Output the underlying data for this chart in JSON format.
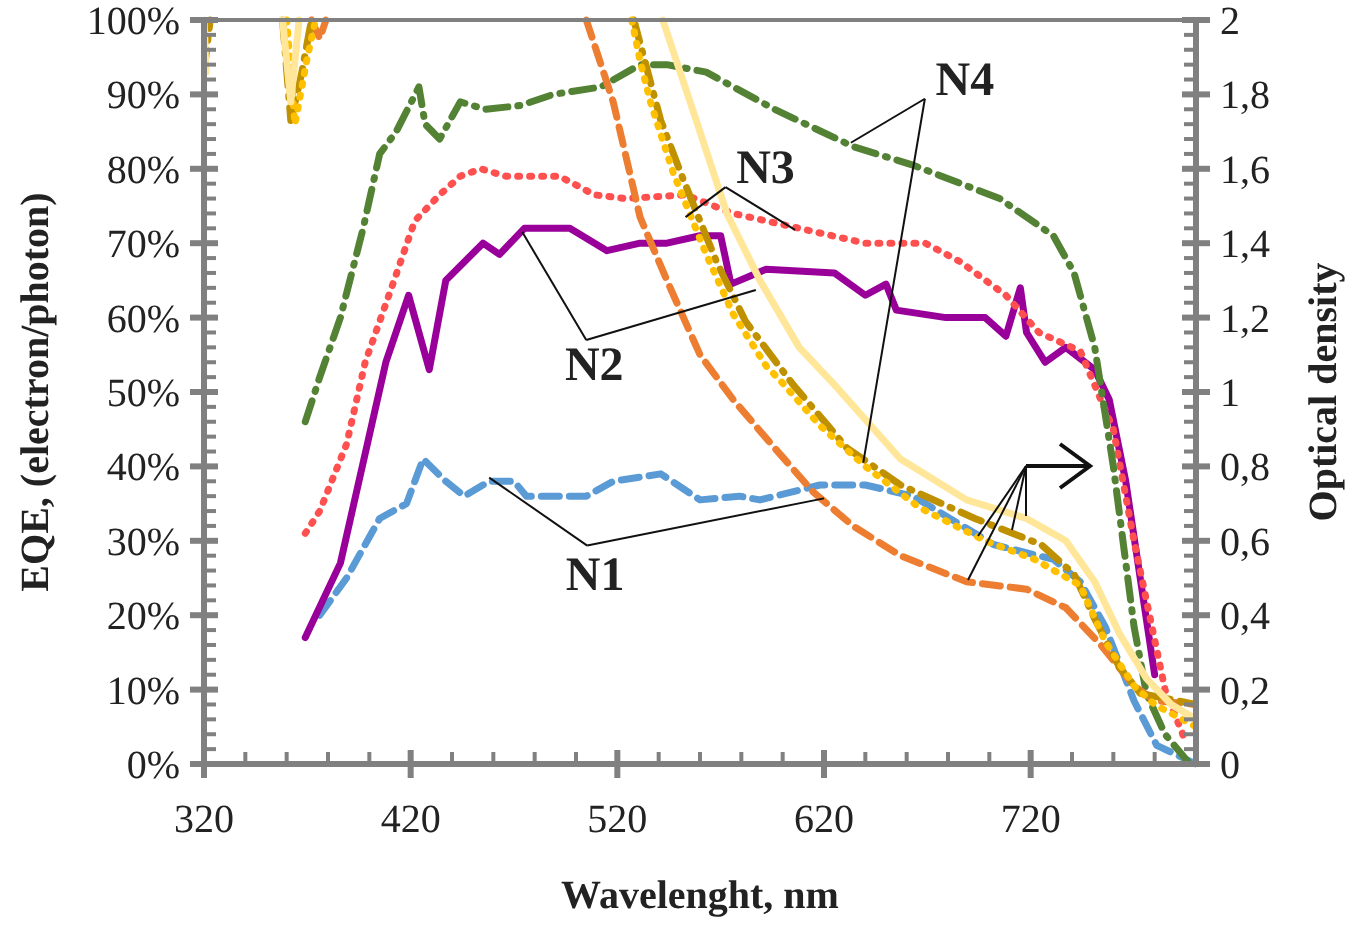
{
  "chart_data": {
    "type": "line",
    "xlabel": "Wavelenght, nm",
    "ylabel": "EQE, (electron/photon)",
    "y2label": "Optical density",
    "xlim": [
      320,
      800
    ],
    "ylim": [
      0,
      100
    ],
    "y2lim": [
      0,
      2
    ],
    "xticks": [
      320,
      {
        "value": 340,
        "label": null
      },
      {
        "value": 360,
        "label": null
      },
      {
        "value": 380,
        "label": null
      },
      {
        "value": 400,
        "label": null
      },
      420,
      {
        "value": 440,
        "label": null
      },
      {
        "value": 460,
        "label": null
      },
      {
        "value": 480,
        "label": null
      },
      {
        "value": 500,
        "label": null
      },
      520,
      {
        "value": 540,
        "label": null
      },
      {
        "value": 560,
        "label": null
      },
      {
        "value": 580,
        "label": null
      },
      {
        "value": 600,
        "label": null
      },
      620,
      {
        "value": 640,
        "label": null
      },
      {
        "value": 660,
        "label": null
      },
      {
        "value": 680,
        "label": null
      },
      {
        "value": 700,
        "label": null
      },
      720,
      {
        "value": 740,
        "label": null
      },
      {
        "value": 760,
        "label": null
      },
      {
        "value": 780,
        "label": null
      },
      {
        "value": 800,
        "label": null
      }
    ],
    "yticks": [
      {
        "value": 0,
        "label": "0%"
      },
      {
        "value": 2,
        "label": null
      },
      {
        "value": 4,
        "label": null
      },
      {
        "value": 6,
        "label": null
      },
      {
        "value": 8,
        "label": null
      },
      {
        "value": 10,
        "label": "10%"
      },
      {
        "value": 12,
        "label": null
      },
      {
        "value": 14,
        "label": null
      },
      {
        "value": 16,
        "label": null
      },
      {
        "value": 18,
        "label": null
      },
      {
        "value": 20,
        "label": "20%"
      },
      {
        "value": 22,
        "label": null
      },
      {
        "value": 24,
        "label": null
      },
      {
        "value": 26,
        "label": null
      },
      {
        "value": 28,
        "label": null
      },
      {
        "value": 30,
        "label": "30%"
      },
      {
        "value": 32,
        "label": null
      },
      {
        "value": 34,
        "label": null
      },
      {
        "value": 36,
        "label": null
      },
      {
        "value": 38,
        "label": null
      },
      {
        "value": 40,
        "label": "40%"
      },
      {
        "value": 42,
        "label": null
      },
      {
        "value": 44,
        "label": null
      },
      {
        "value": 46,
        "label": null
      },
      {
        "value": 48,
        "label": null
      },
      {
        "value": 50,
        "label": "50%"
      },
      {
        "value": 52,
        "label": null
      },
      {
        "value": 54,
        "label": null
      },
      {
        "value": 56,
        "label": null
      },
      {
        "value": 58,
        "label": null
      },
      {
        "value": 60,
        "label": "60%"
      },
      {
        "value": 62,
        "label": null
      },
      {
        "value": 64,
        "label": null
      },
      {
        "value": 66,
        "label": null
      },
      {
        "value": 68,
        "label": null
      },
      {
        "value": 70,
        "label": "70%"
      },
      {
        "value": 72,
        "label": null
      },
      {
        "value": 74,
        "label": null
      },
      {
        "value": 76,
        "label": null
      },
      {
        "value": 78,
        "label": null
      },
      {
        "value": 80,
        "label": "80%"
      },
      {
        "value": 82,
        "label": null
      },
      {
        "value": 84,
        "label": null
      },
      {
        "value": 86,
        "label": null
      },
      {
        "value": 88,
        "label": null
      },
      {
        "value": 90,
        "label": "90%"
      },
      {
        "value": 92,
        "label": null
      },
      {
        "value": 94,
        "label": null
      },
      {
        "value": 96,
        "label": null
      },
      {
        "value": 98,
        "label": null
      },
      {
        "value": 100,
        "label": "100%"
      }
    ],
    "y2ticks": [
      0,
      {
        "value": 0.04,
        "label": null
      },
      {
        "value": 0.08,
        "label": null
      },
      {
        "value": 0.12,
        "label": null
      },
      {
        "value": 0.16,
        "label": null
      },
      {
        "value": 0.2,
        "label": "0,2"
      },
      {
        "value": 0.24,
        "label": null
      },
      {
        "value": 0.28,
        "label": null
      },
      {
        "value": 0.32,
        "label": null
      },
      {
        "value": 0.36,
        "label": null
      },
      {
        "value": 0.4,
        "label": "0,4"
      },
      {
        "value": 0.44,
        "label": null
      },
      {
        "value": 0.48,
        "label": null
      },
      {
        "value": 0.52,
        "label": null
      },
      {
        "value": 0.56,
        "label": null
      },
      {
        "value": 0.6,
        "label": "0,6"
      },
      {
        "value": 0.64,
        "label": null
      },
      {
        "value": 0.68,
        "label": null
      },
      {
        "value": 0.72,
        "label": null
      },
      {
        "value": 0.76,
        "label": null
      },
      {
        "value": 0.8,
        "label": "0,8"
      },
      {
        "value": 0.84,
        "label": null
      },
      {
        "value": 0.88,
        "label": null
      },
      {
        "value": 0.92,
        "label": null
      },
      {
        "value": 0.96,
        "label": null
      },
      1,
      {
        "value": 1.04,
        "label": null
      },
      {
        "value": 1.08,
        "label": null
      },
      {
        "value": 1.12,
        "label": null
      },
      {
        "value": 1.16,
        "label": null
      },
      {
        "value": 1.2,
        "label": "1,2"
      },
      {
        "value": 1.24,
        "label": null
      },
      {
        "value": 1.28,
        "label": null
      },
      {
        "value": 1.32,
        "label": null
      },
      {
        "value": 1.36,
        "label": null
      },
      {
        "value": 1.4,
        "label": "1,4"
      },
      {
        "value": 1.44,
        "label": null
      },
      {
        "value": 1.48,
        "label": null
      },
      {
        "value": 1.52,
        "label": null
      },
      {
        "value": 1.56,
        "label": null
      },
      {
        "value": 1.6,
        "label": "1,6"
      },
      {
        "value": 1.64,
        "label": null
      },
      {
        "value": 1.68,
        "label": null
      },
      {
        "value": 1.72,
        "label": null
      },
      {
        "value": 1.76,
        "label": null
      },
      {
        "value": 1.8,
        "label": "1,8"
      },
      {
        "value": 1.84,
        "label": null
      },
      {
        "value": 1.88,
        "label": null
      },
      {
        "value": 1.92,
        "label": null
      },
      {
        "value": 1.96,
        "label": null
      },
      2
    ],
    "grid": false,
    "marker": "none",
    "series": [
      {
        "color": "#5b9bd5",
        "line_style": "dashed",
        "x": [
          376,
          389,
          405,
          418,
          426,
          437,
          446,
          458,
          470,
          476,
          505,
          518,
          541,
          560,
          579,
          589,
          618,
          640,
          663,
          702,
          731,
          744,
          756,
          770,
          781,
          800
        ],
        "values": [
          20,
          25,
          33,
          35,
          41,
          38,
          36,
          38,
          38,
          36,
          36,
          38,
          39,
          35.5,
          36,
          35.5,
          37.5,
          37.5,
          36,
          29.5,
          27.5,
          24.5,
          18.5,
          8.5,
          2.5,
          0
        ]
      },
      {
        "color": "#990099",
        "line_style": "solid",
        "x": [
          369,
          386,
          408,
          419,
          429,
          437,
          455,
          463,
          475,
          497,
          515,
          531,
          544,
          560,
          570,
          575,
          592,
          625,
          640,
          650,
          655,
          679,
          698,
          708,
          715,
          718,
          727,
          737,
          751,
          758,
          766,
          780
        ],
        "values": [
          17,
          27,
          54,
          63,
          53,
          65,
          70,
          68.5,
          72,
          72,
          69,
          70,
          70,
          71,
          71,
          64.5,
          66.5,
          66,
          63,
          64.5,
          61,
          60,
          60,
          57.5,
          64,
          58,
          54,
          56,
          53,
          49,
          38,
          12
        ]
      },
      {
        "color": "#ff5050",
        "line_style": "dotted",
        "x": [
          369,
          376,
          389,
          398,
          412,
          422,
          434,
          444,
          454,
          466,
          492,
          509,
          524,
          553,
          576,
          608,
          640,
          669,
          686,
          708,
          724,
          744,
          760,
          770,
          785,
          795
        ],
        "values": [
          31,
          34,
          43,
          54,
          65,
          73,
          76.5,
          79,
          80,
          79,
          79,
          76.5,
          76,
          76.5,
          74,
          72,
          70,
          70,
          67.5,
          63,
          58,
          55.5,
          45,
          30,
          10,
          3
        ]
      },
      {
        "color": "#548235",
        "line_style": "dashdot",
        "x": [
          369,
          376,
          386,
          397,
          405,
          413,
          424,
          427,
          434,
          444,
          456,
          473,
          489,
          512,
          531,
          544,
          563,
          596,
          634,
          663,
          705,
          731,
          741,
          751,
          760,
          770,
          776,
          785,
          797
        ],
        "values": [
          46,
          52,
          60,
          72,
          82,
          85,
          91,
          86,
          84,
          89,
          88,
          88.5,
          90,
          91,
          94,
          94,
          93,
          88,
          83,
          80.5,
          76,
          71,
          66,
          56,
          40,
          18.5,
          9.5,
          4,
          0
        ]
      },
      {
        "color": "#ed7d31",
        "line_style": "dashed",
        "axis": "y2",
        "x": [
          372,
          376,
          379,
          380,
          505,
          518,
          531,
          544,
          560,
          576,
          596,
          615,
          634,
          657,
          689,
          718,
          737,
          754,
          770,
          780,
          800
        ],
        "values": [
          2,
          1.95,
          2,
          null,
          2,
          1.78,
          1.47,
          1.3,
          1.1,
          0.98,
          0.85,
          0.73,
          0.64,
          0.56,
          0.49,
          0.47,
          0.42,
          0.32,
          0.21,
          0.17,
          0.16
        ]
      },
      {
        "color": "#bf9000",
        "line_style": "dashdot",
        "axis": "y2",
        "x": [
          320,
          323,
          330,
          358,
          362,
          367,
          372,
          380,
          528,
          541,
          552,
          568,
          582,
          605,
          631,
          657,
          693,
          725,
          741,
          751,
          763,
          773,
          800
        ],
        "values": [
          1.86,
          2,
          null,
          2,
          1.73,
          1.85,
          2,
          null,
          2,
          1.73,
          1.57,
          1.35,
          1.19,
          1.02,
          0.85,
          0.75,
          0.66,
          0.59,
          0.51,
          0.39,
          0.26,
          0.19,
          0.16
        ]
      },
      {
        "color": "#ffc000",
        "line_style": "dotted",
        "axis": "y2",
        "x": [
          360,
          364,
          370,
          374,
          380,
          527,
          531,
          536,
          547,
          563,
          576,
          592,
          599,
          618,
          640,
          666,
          698,
          722,
          744,
          756,
          770,
          780,
          800
        ],
        "values": [
          2,
          1.72,
          1.9,
          2,
          null,
          2,
          1.89,
          1.78,
          1.59,
          1.37,
          1.21,
          1.07,
          1.03,
          0.91,
          0.8,
          0.69,
          0.6,
          0.55,
          0.48,
          0.33,
          0.21,
          0.16,
          0.1
        ]
      },
      {
        "color": "#ffe699",
        "line_style": "solid",
        "axis": "y2",
        "x": [
          320,
          321,
          330,
          358,
          362,
          366,
          380,
          542,
          557,
          573,
          589,
          608,
          625,
          657,
          689,
          718,
          737,
          751,
          763,
          776,
          788,
          800
        ],
        "values": [
          2,
          1.86,
          null,
          2,
          1.78,
          2,
          null,
          2,
          1.75,
          1.48,
          1.3,
          1.12,
          1.02,
          0.82,
          0.71,
          0.66,
          0.6,
          0.49,
          0.35,
          0.23,
          0.16,
          0.12
        ]
      }
    ],
    "annotations": [
      {
        "text": "N1",
        "x": 458,
        "y": 38.5
      },
      {
        "text": "N2",
        "x": 474,
        "y": 71.5
      },
      {
        "text": "N3",
        "x": 553,
        "y": 73.5
      },
      {
        "text": "N4",
        "x": 633,
        "y": 83.5
      }
    ]
  }
}
